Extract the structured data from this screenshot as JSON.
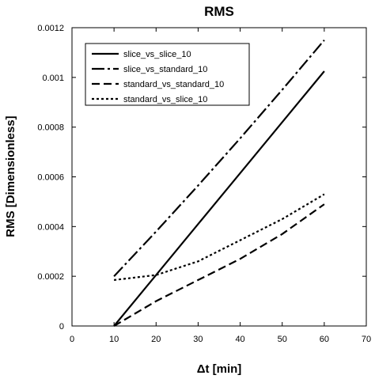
{
  "chart_data": {
    "type": "line",
    "title": "RMS",
    "xlabel": "Δt [min]",
    "ylabel": "RMS [Dimensionless]",
    "xlim": [
      0,
      70
    ],
    "ylim": [
      0,
      0.0012
    ],
    "xticks": [
      0,
      10,
      20,
      30,
      40,
      50,
      60,
      70
    ],
    "yticks": [
      0,
      0.0002,
      0.0004,
      0.0006,
      0.0008,
      0.001,
      0.0012
    ],
    "xtick_labels": [
      "0",
      "10",
      "20",
      "30",
      "40",
      "50",
      "60",
      "70"
    ],
    "ytick_labels": [
      "0",
      "0.0002",
      "0.0004",
      "0.0006",
      "0.0008",
      "0.001",
      "0.0012"
    ],
    "grid": false,
    "legend_position": "top-left",
    "series": [
      {
        "name": "slice_vs_slice_10",
        "style": "solid",
        "x": [
          10,
          20,
          30,
          40,
          50,
          60
        ],
        "y": [
          0,
          0.000205,
          0.00041,
          0.000615,
          0.00082,
          0.001025
        ]
      },
      {
        "name": "slice_vs_standard_10",
        "style": "dashdot",
        "x": [
          10,
          20,
          30,
          40,
          50,
          60
        ],
        "y": [
          0.0002,
          0.00038,
          0.000565,
          0.000755,
          0.00095,
          0.00115
        ]
      },
      {
        "name": "standard_vs_standard_10",
        "style": "dashed",
        "x": [
          10,
          20,
          30,
          40,
          50,
          60
        ],
        "y": [
          0,
          0.0001,
          0.000185,
          0.00027,
          0.00037,
          0.00049
        ]
      },
      {
        "name": "standard_vs_slice_10",
        "style": "dotted",
        "x": [
          10,
          20,
          30,
          40,
          50,
          60
        ],
        "y": [
          0.000185,
          0.000205,
          0.00026,
          0.000345,
          0.00043,
          0.00053
        ]
      }
    ]
  }
}
